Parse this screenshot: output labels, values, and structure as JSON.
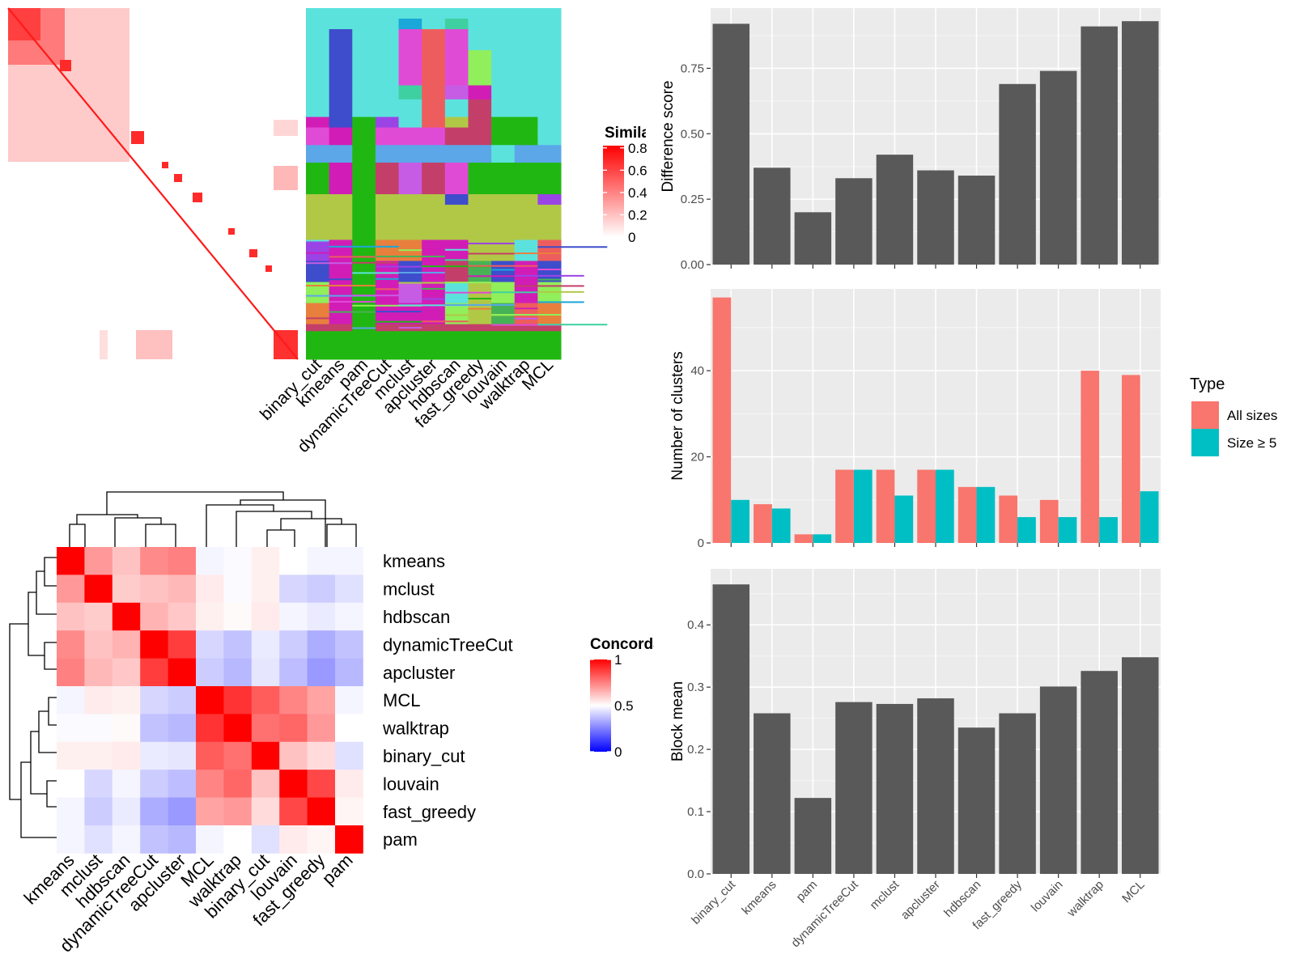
{
  "similarity_panel": {
    "legend": {
      "title": "Similarity",
      "ticks": [
        "0.8",
        "0.6",
        "0.4",
        "0.2",
        "0"
      ]
    },
    "method_labels": [
      "binary_cut",
      "kmeans",
      "pam",
      "dynamicTreeCut",
      "mclust",
      "apcluster",
      "hdbscan",
      "fast_greedy",
      "louvain",
      "walktrap",
      "MCL"
    ],
    "class_palette": [
      "#5ce2dc",
      "#21b712",
      "#b1c847",
      "#d11db6",
      "#e04bd6",
      "#c33f69",
      "#3d4dcb",
      "#5ba7e8",
      "#ee5d5d",
      "#90ef5a",
      "#9a44e6",
      "#3fd0a2",
      "#e87f3d",
      "#1aa7d9",
      "#c65ce4",
      "#47b255"
    ]
  },
  "concordance_panel": {
    "legend": {
      "title": "Concordance",
      "ticks": [
        "1",
        "0.5",
        "0"
      ]
    },
    "row_labels": [
      "kmeans",
      "mclust",
      "hdbscan",
      "dynamicTreeCut",
      "apcluster",
      "MCL",
      "walktrap",
      "binary_cut",
      "louvain",
      "fast_greedy",
      "pam"
    ],
    "col_labels": [
      "kmeans",
      "mclust",
      "hdbscan",
      "dynamicTreeCut",
      "apcluster",
      "MCL",
      "walktrap",
      "binary_cut",
      "louvain",
      "fast_greedy",
      "pam"
    ],
    "matrix": [
      [
        1.0,
        0.7,
        0.62,
        0.73,
        0.75,
        0.48,
        0.49,
        0.53,
        0.5,
        0.48,
        0.48
      ],
      [
        0.7,
        1.0,
        0.6,
        0.62,
        0.64,
        0.54,
        0.49,
        0.53,
        0.42,
        0.4,
        0.44
      ],
      [
        0.62,
        0.6,
        1.0,
        0.65,
        0.61,
        0.53,
        0.51,
        0.54,
        0.48,
        0.46,
        0.48
      ],
      [
        0.73,
        0.62,
        0.65,
        1.0,
        0.88,
        0.42,
        0.38,
        0.46,
        0.4,
        0.34,
        0.38
      ],
      [
        0.75,
        0.64,
        0.61,
        0.88,
        1.0,
        0.4,
        0.36,
        0.45,
        0.37,
        0.3,
        0.36
      ],
      [
        0.48,
        0.54,
        0.53,
        0.42,
        0.4,
        1.0,
        0.9,
        0.82,
        0.74,
        0.68,
        0.48
      ],
      [
        0.49,
        0.49,
        0.51,
        0.38,
        0.36,
        0.9,
        1.0,
        0.78,
        0.8,
        0.7,
        0.5
      ],
      [
        0.53,
        0.53,
        0.54,
        0.46,
        0.45,
        0.82,
        0.78,
        1.0,
        0.62,
        0.57,
        0.44
      ],
      [
        0.5,
        0.42,
        0.48,
        0.4,
        0.37,
        0.74,
        0.8,
        0.62,
        1.0,
        0.86,
        0.54
      ],
      [
        0.48,
        0.4,
        0.46,
        0.34,
        0.3,
        0.68,
        0.7,
        0.57,
        0.86,
        1.0,
        0.52
      ],
      [
        0.48,
        0.44,
        0.48,
        0.38,
        0.36,
        0.48,
        0.5,
        0.44,
        0.54,
        0.52,
        1.0
      ]
    ]
  },
  "chart_data": [
    {
      "type": "bar",
      "categories": [
        "binary_cut",
        "kmeans",
        "pam",
        "dynamicTreeCut",
        "mclust",
        "apcluster",
        "hdbscan",
        "fast_greedy",
        "louvain",
        "walktrap",
        "MCL"
      ],
      "values": [
        0.92,
        0.37,
        0.2,
        0.33,
        0.42,
        0.36,
        0.34,
        0.69,
        0.74,
        0.91,
        0.93
      ],
      "ylabel": "Difference score",
      "ylim": [
        0,
        0.98
      ],
      "yticks": [
        "0.00",
        "0.25",
        "0.50",
        "0.75"
      ],
      "bar_color": "#595959",
      "grid": true
    },
    {
      "type": "bar",
      "categories": [
        "binary_cut",
        "kmeans",
        "pam",
        "dynamicTreeCut",
        "mclust",
        "apcluster",
        "hdbscan",
        "fast_greedy",
        "louvain",
        "walktrap",
        "MCL"
      ],
      "series": [
        {
          "name": "All sizes",
          "values": [
            57,
            9,
            2,
            17,
            17,
            17,
            13,
            11,
            10,
            40,
            39
          ],
          "color": "#f8766d"
        },
        {
          "name": "Size ≥ 5",
          "values": [
            10,
            8,
            2,
            17,
            11,
            17,
            13,
            6,
            6,
            6,
            12
          ],
          "color": "#00bfc4"
        }
      ],
      "ylabel": "Number of clusters",
      "ylim": [
        0,
        59
      ],
      "yticks": [
        "0",
        "20",
        "40"
      ],
      "legend_title": "Type",
      "legend_position": "right",
      "grid": true
    },
    {
      "type": "bar",
      "categories": [
        "binary_cut",
        "kmeans",
        "pam",
        "dynamicTreeCut",
        "mclust",
        "apcluster",
        "hdbscan",
        "fast_greedy",
        "louvain",
        "walktrap",
        "MCL"
      ],
      "values": [
        0.465,
        0.258,
        0.122,
        0.276,
        0.273,
        0.282,
        0.235,
        0.258,
        0.301,
        0.326,
        0.348
      ],
      "ylabel": "Block mean",
      "ylim": [
        0,
        0.49
      ],
      "yticks": [
        "0.0",
        "0.1",
        "0.2",
        "0.3",
        "0.4"
      ],
      "bar_color": "#595959",
      "grid": true
    }
  ]
}
